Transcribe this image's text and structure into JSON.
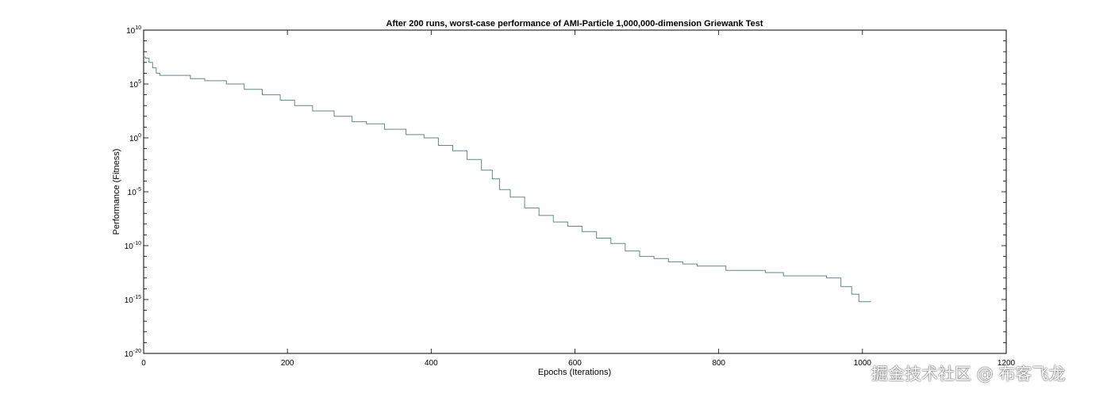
{
  "chart_data": {
    "type": "line",
    "title": "After 200 runs, worst-case performance of AMI-Particle 1,000,000-dimension Griewank Test",
    "xlabel": "Epochs (Iterations)",
    "ylabel": "Performance (Fitness)",
    "xlim": [
      0,
      1200
    ],
    "ylim_exponent": [
      -20,
      10
    ],
    "yscale": "log",
    "x_ticks": [
      "0",
      "200",
      "400",
      "600",
      "800",
      "1000",
      "1200"
    ],
    "y_tick_exponents": [
      "10",
      "5",
      "0",
      "-5",
      "-10",
      "-15",
      "-20"
    ],
    "y_tick_base": "10",
    "grid": false,
    "line_color": "#5f8a82",
    "series": [
      {
        "x": [
          0,
          5,
          10,
          15,
          20,
          25,
          30,
          40,
          60,
          70,
          100,
          130,
          150,
          180,
          200,
          220,
          250,
          280,
          300,
          320,
          350,
          380,
          400,
          420,
          440,
          460,
          480,
          490,
          500,
          520,
          540,
          560,
          580,
          600,
          620,
          640,
          660,
          680,
          700,
          720,
          740,
          760,
          780,
          800,
          820,
          850,
          880,
          900,
          940,
          960,
          980,
          990,
          1000,
          1012
        ],
        "y_exponent": [
          7.5,
          7.4,
          7.0,
          6.5,
          6.0,
          5.8,
          5.8,
          5.8,
          5.8,
          5.5,
          5.3,
          5.0,
          4.5,
          4.0,
          3.5,
          3.0,
          2.5,
          2.0,
          1.5,
          1.3,
          0.8,
          0.3,
          0.0,
          -0.7,
          -1.2,
          -2.0,
          -3.0,
          -3.8,
          -4.8,
          -5.5,
          -6.5,
          -7.2,
          -7.8,
          -8.2,
          -8.7,
          -9.3,
          -9.8,
          -10.5,
          -11.0,
          -11.2,
          -11.5,
          -11.7,
          -11.9,
          -11.9,
          -12.3,
          -12.3,
          -12.5,
          -12.8,
          -12.8,
          -13.0,
          -13.8,
          -14.5,
          -15.2,
          -15.2
        ]
      }
    ]
  },
  "watermark": "掘金技术社区 @ 布客飞龙"
}
